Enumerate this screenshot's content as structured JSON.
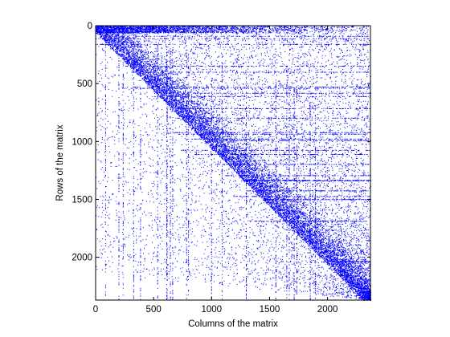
{
  "chart_data": {
    "type": "spy",
    "title": "",
    "xlabel": "Columns of the matrix",
    "ylabel": "Rows of the matrix",
    "xlim": [
      0,
      2370
    ],
    "ylim": [
      0,
      2370
    ],
    "y_axis_reversed": true,
    "x_ticks": [
      0,
      500,
      1000,
      1500,
      2000
    ],
    "y_ticks": [
      0,
      500,
      1000,
      1500,
      2000
    ],
    "marker_color": "#0000ff",
    "grid": false
  }
}
